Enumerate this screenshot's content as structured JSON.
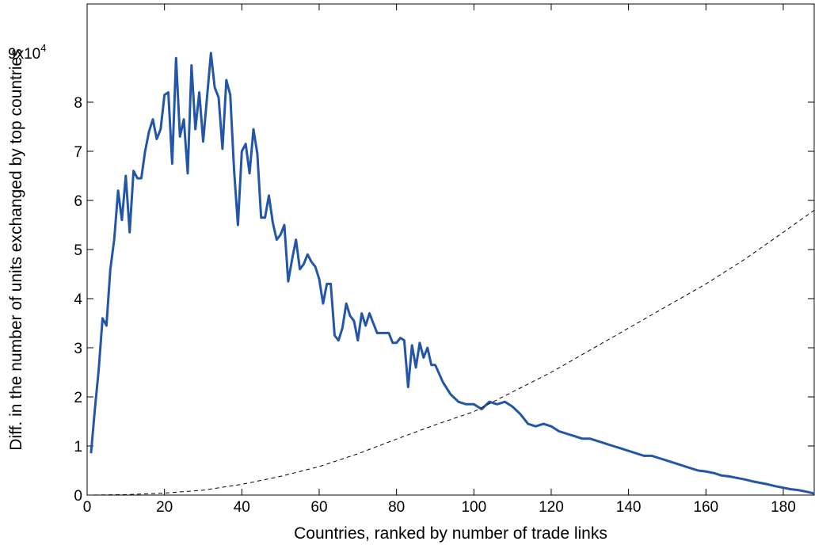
{
  "chart_data": {
    "type": "line",
    "xlabel": "Countries, ranked by number of trade links",
    "ylabel": "Diff. in the number of units exchanged by top countries",
    "y_multiplier_label": "9x10",
    "y_multiplier_exponent": "4",
    "xlim": [
      0,
      188
    ],
    "ylim": [
      0,
      100000
    ],
    "xticks": [
      0,
      20,
      40,
      60,
      80,
      100,
      120,
      140,
      160,
      180
    ],
    "yticks": [
      0,
      10000,
      20000,
      30000,
      40000,
      50000,
      60000,
      70000,
      80000
    ],
    "ytick_labels": [
      "0",
      "1",
      "2",
      "3",
      "4",
      "5",
      "6",
      "7",
      "8"
    ],
    "grid": false,
    "series": [
      {
        "style": "solid",
        "color": "#2456a8",
        "x": [
          1,
          2,
          3,
          4,
          5,
          6,
          7,
          8,
          9,
          10,
          11,
          12,
          13,
          14,
          15,
          16,
          17,
          18,
          19,
          20,
          21,
          22,
          23,
          24,
          25,
          26,
          27,
          28,
          29,
          30,
          31,
          32,
          33,
          34,
          35,
          36,
          37,
          38,
          39,
          40,
          41,
          42,
          43,
          44,
          45,
          46,
          47,
          48,
          49,
          50,
          51,
          52,
          53,
          54,
          55,
          56,
          57,
          58,
          59,
          60,
          61,
          62,
          63,
          64,
          65,
          66,
          67,
          68,
          69,
          70,
          71,
          72,
          73,
          74,
          75,
          76,
          77,
          78,
          79,
          80,
          81,
          82,
          83,
          84,
          85,
          86,
          87,
          88,
          89,
          90,
          92,
          94,
          96,
          98,
          100,
          102,
          104,
          106,
          108,
          110,
          112,
          114,
          116,
          118,
          120,
          122,
          124,
          126,
          128,
          130,
          132,
          134,
          136,
          138,
          140,
          142,
          144,
          146,
          148,
          150,
          152,
          154,
          156,
          158,
          160,
          162,
          164,
          166,
          168,
          170,
          172,
          174,
          176,
          178,
          180,
          182,
          184,
          186,
          188
        ],
        "y": [
          8500,
          17500,
          25500,
          36000,
          34500,
          46000,
          52000,
          62000,
          56000,
          65000,
          53500,
          66000,
          64500,
          64500,
          70000,
          74000,
          76500,
          72500,
          74500,
          81500,
          82000,
          67500,
          89000,
          73000,
          76500,
          65500,
          87500,
          74500,
          82000,
          72000,
          81000,
          90000,
          83000,
          81000,
          70500,
          84500,
          81500,
          66000,
          55000,
          70000,
          71500,
          65500,
          74500,
          69500,
          56500,
          56500,
          61000,
          55500,
          52000,
          53000,
          55000,
          43500,
          48000,
          52000,
          46000,
          47000,
          49000,
          47500,
          46500,
          44000,
          39000,
          43000,
          43000,
          32500,
          31500,
          34000,
          39000,
          36500,
          35500,
          31500,
          37000,
          34500,
          37000,
          35000,
          33000,
          33000,
          33000,
          33000,
          31000,
          31000,
          32000,
          31500,
          22000,
          30500,
          26000,
          31000,
          28000,
          30000,
          26500,
          26500,
          23000,
          20500,
          19000,
          18500,
          18500,
          17500,
          19000,
          18500,
          19000,
          18000,
          16500,
          14500,
          14000,
          14500,
          14000,
          13000,
          12500,
          12000,
          11500,
          11500,
          11000,
          10500,
          10000,
          9500,
          9000,
          8500,
          8000,
          8000,
          7500,
          7000,
          6500,
          6000,
          5500,
          5000,
          4800,
          4500,
          4000,
          3800,
          3500,
          3200,
          2800,
          2500,
          2200,
          1800,
          1500,
          1200,
          1000,
          700,
          300
        ]
      },
      {
        "style": "dashed",
        "color": "#000000",
        "x": [
          0,
          10,
          20,
          30,
          40,
          50,
          60,
          70,
          80,
          90,
          100,
          110,
          120,
          130,
          140,
          150,
          160,
          170,
          180,
          188
        ],
        "y": [
          0,
          100,
          400,
          1000,
          2200,
          3800,
          5800,
          8400,
          11400,
          14300,
          17000,
          21000,
          25000,
          29500,
          34000,
          38500,
          43000,
          48000,
          53500,
          58000
        ]
      }
    ]
  }
}
